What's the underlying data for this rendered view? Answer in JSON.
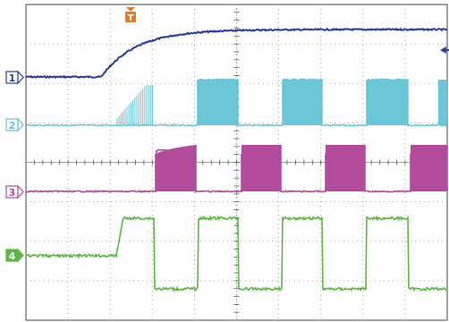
{
  "screen": {
    "background": "#ffffff",
    "grid_color": "#8a8a8a",
    "border_color": "#444444",
    "divisions": {
      "horizontal": 10,
      "vertical": 8
    }
  },
  "trigger": {
    "label": "T",
    "color": "#e07d2a"
  },
  "right_marker_icon": "arrow-left-icon",
  "channels": [
    {
      "label": "1",
      "color": "#2c3f92"
    },
    {
      "label": "2",
      "color": "#63c3d6"
    },
    {
      "label": "3",
      "color": "#b34b9d"
    },
    {
      "label": "4",
      "color": "#5bb842"
    }
  ]
}
